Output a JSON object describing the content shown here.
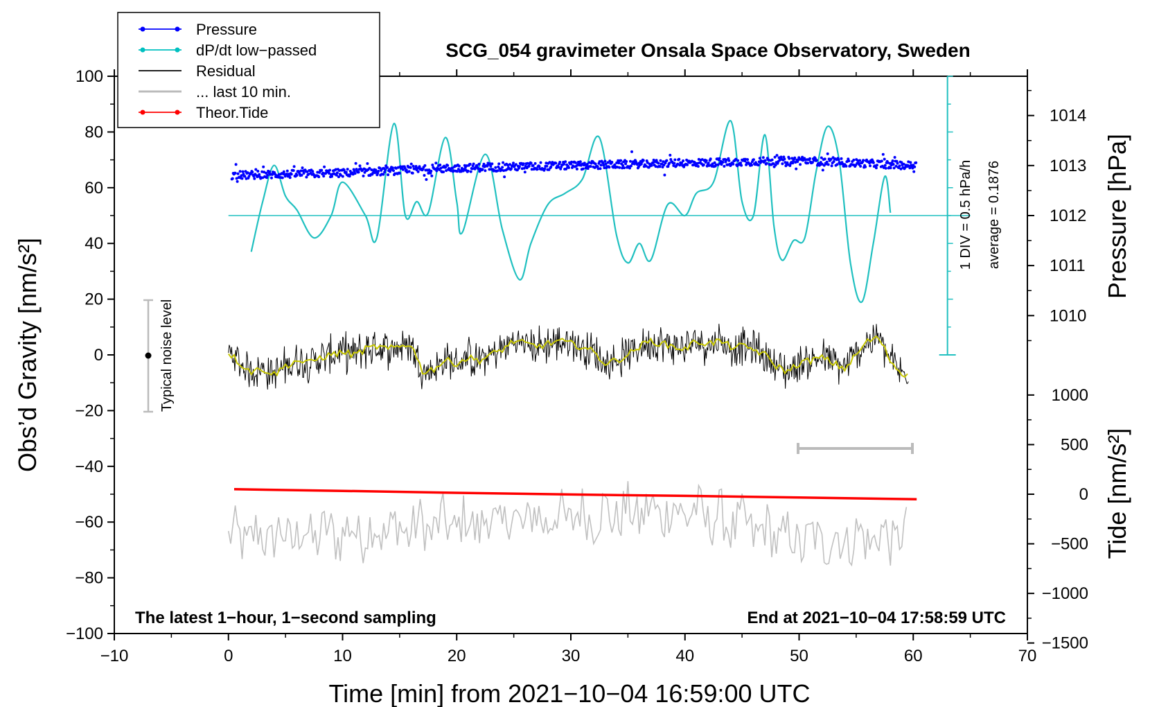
{
  "chart_data": {
    "type": "line",
    "title": "SCG_054 gravimeter Onsala Space Observatory, Sweden",
    "xlabel": "Time [min] from 2021−10−04 16:59:00 UTC",
    "ylabel_left": "Obs’d Gravity [nm/s²]",
    "ylabel_right_top": "Pressure [hPa]",
    "ylabel_right_bottom": "Tide [nm/s²]",
    "xlim": [
      -10,
      70
    ],
    "ylim": [
      -100,
      100
    ],
    "x_ticks": [
      "−10",
      "0",
      "10",
      "20",
      "30",
      "40",
      "50",
      "60",
      "70"
    ],
    "y_ticks": [
      "100",
      "80",
      "60",
      "40",
      "20",
      "0",
      "−20",
      "−40",
      "−60",
      "−80",
      "−100"
    ],
    "pressure_ticks": [
      "1014",
      "1013",
      "1012",
      "1011",
      "1010"
    ],
    "tide_ticks": [
      "1000",
      "500",
      "0",
      "−500",
      "−1000",
      "−1500"
    ],
    "footer_left": "The latest 1−hour, 1−second sampling",
    "footer_right": "End at 2021−10−04 17:58:59 UTC",
    "noise_label": "Typical noise level",
    "scale_label": "1 DIV = 0.5 hPa/h",
    "average_label": "average = 0.1876",
    "legend": [
      {
        "name": "Pressure",
        "color": "#0000ff",
        "marker": true
      },
      {
        "name": "dP/dt low−passed",
        "color": "#00c0c0",
        "marker": true
      },
      {
        "name": "Residual",
        "color": "#000000",
        "marker": false
      },
      {
        "name": "... last 10 min.",
        "color": "#bbbbbb",
        "marker": false
      },
      {
        "name": "Theor.Tide",
        "color": "#ff0000",
        "marker": true
      }
    ],
    "series": {
      "pressure_hpa": {
        "x": [
          0,
          10,
          20,
          30,
          40,
          50,
          60
        ],
        "y": [
          1012.8,
          1012.85,
          1012.95,
          1013.0,
          1013.05,
          1013.1,
          1013.0
        ]
      },
      "dpdt_gravity_units": {
        "x": [
          2,
          3,
          4,
          5,
          6,
          7.5,
          9,
          10,
          12,
          13,
          14.5,
          15.5,
          16.5,
          17.5,
          19,
          20,
          20.5,
          22.5,
          24,
          25.5,
          26.5,
          28,
          29.5,
          31,
          32.5,
          34,
          35,
          36,
          37,
          38.5,
          40,
          41,
          42.5,
          44,
          45,
          46,
          47,
          47.8,
          48.5,
          49.5,
          50.5,
          51.5,
          52.5,
          53.5,
          54.5,
          55.5,
          56.5,
          57.5,
          58
        ],
        "y": [
          37,
          55,
          68,
          57,
          52,
          42,
          50,
          62,
          50,
          42,
          83,
          50,
          55,
          51,
          78,
          55,
          44,
          72,
          45,
          27,
          40,
          54,
          58,
          63,
          78,
          43,
          33,
          40,
          34,
          54,
          50,
          58,
          62,
          84,
          55,
          50,
          79,
          46,
          34,
          41,
          42,
          66,
          82,
          70,
          33,
          19,
          40,
          64,
          51
        ]
      },
      "residual_smooth": {
        "x": [
          0,
          1,
          2,
          3,
          4,
          5,
          6,
          7,
          8,
          9,
          10,
          11,
          12,
          13,
          14,
          15,
          16,
          17,
          18,
          19,
          20,
          21,
          22,
          23,
          24,
          25,
          26,
          27,
          28,
          29,
          30,
          31,
          32,
          33,
          34,
          35,
          36,
          37,
          38,
          39,
          40,
          41,
          42,
          43,
          44,
          45,
          46,
          47,
          48,
          49,
          50,
          51,
          52,
          53,
          54,
          55,
          56,
          57,
          58,
          59,
          60
        ],
        "y": [
          1,
          -3,
          -6,
          -5,
          -7,
          -4,
          -2,
          -3,
          -1,
          0,
          1,
          0,
          2,
          3,
          2,
          3,
          4,
          -6,
          -5,
          -2,
          -3,
          -1,
          -2,
          0,
          2,
          5,
          4,
          3,
          4,
          5,
          4,
          3,
          1,
          -3,
          -2,
          0,
          3,
          5,
          4,
          3,
          2,
          5,
          4,
          5,
          3,
          3,
          2,
          0,
          -4,
          -6,
          -3,
          -2,
          -1,
          -3,
          -5,
          0,
          5,
          6,
          -2,
          -7,
          -6
        ]
      },
      "last10_grav": {
        "x": [
          0,
          10,
          20,
          30,
          40,
          50,
          60
        ],
        "y": [
          -66,
          -64,
          -61,
          -58,
          -56,
          -67,
          -65
        ]
      },
      "theor_tide_gravity_units": {
        "x": [
          0.5,
          10,
          20,
          30,
          40,
          50,
          60.3
        ],
        "y": [
          -48.2,
          -48.8,
          -49.5,
          -50.1,
          -50.6,
          -51.2,
          -51.8
        ]
      }
    }
  }
}
